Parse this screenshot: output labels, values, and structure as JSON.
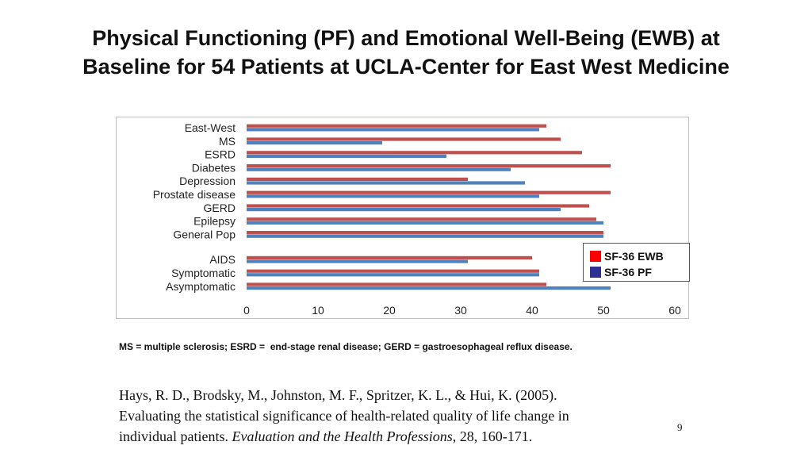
{
  "title": {
    "line1": "Physical Functioning (PF) and Emotional Well-Being (EWB) at",
    "line2": "Baseline for 54 Patients at UCLA-Center for East West Medicine"
  },
  "chart_data": {
    "type": "bar",
    "orientation": "horizontal",
    "categories": [
      "East-West",
      "MS",
      "ESRD",
      "Diabetes",
      "Depression",
      "Prostate disease",
      "GERD",
      "Epilepsy",
      "General Pop",
      "AIDS",
      "Symptomatic",
      "Asymptomatic"
    ],
    "series": [
      {
        "name": "SF-36 EWB",
        "color": "#c0504d",
        "values": [
          42,
          44,
          47,
          51,
          31,
          51,
          48,
          49,
          50,
          40,
          41,
          42
        ]
      },
      {
        "name": "SF-36 PF",
        "color": "#4f81bd",
        "values": [
          41,
          19,
          28,
          37,
          39,
          41,
          44,
          50,
          50,
          31,
          41,
          51
        ]
      }
    ],
    "xlim": [
      0,
      60
    ],
    "xticks": [
      0,
      10,
      20,
      30,
      40,
      50,
      60
    ],
    "grid": false,
    "legend": {
      "position": "right",
      "entries": [
        {
          "label": "SF-36 EWB",
          "swatch": "#ff0000"
        },
        {
          "label": "SF-36 PF",
          "swatch": "#2e3192"
        }
      ]
    }
  },
  "footnote": "MS = multiple sclerosis; ESRD =  end-stage renal disease; GERD = gastroesophageal reflux disease.",
  "citation": {
    "line1": "Hays, R. D., Brodsky, M., Johnston, M. F., Spritzer, K. L., & Hui, K.  (2005).",
    "line2": "Evaluating the statistical significance of health-related quality of life change in",
    "line3_prefix": "individual patients.  ",
    "journal": "Evaluation and the Health Professions",
    "line3_suffix": ", 28, 160-171."
  },
  "page_number": "9"
}
